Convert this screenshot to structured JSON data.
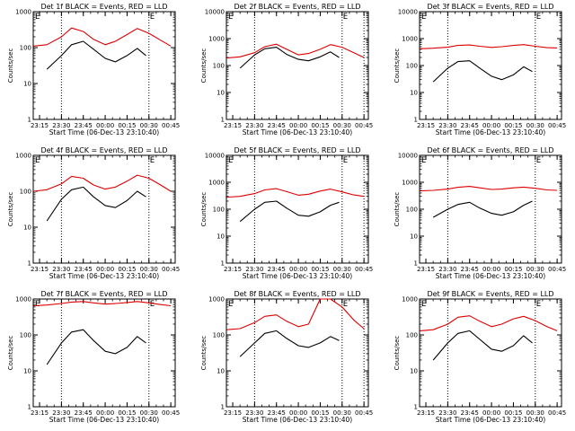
{
  "chart_data": [
    {
      "type": "line",
      "title": "Det 1f BLACK = Events, RED = LLD",
      "xlabel": "Start Time (06-Dec-13 23:10:40)",
      "ylabel": "Counts/sec",
      "ylim": [
        1,
        1000
      ],
      "x_ticks": [
        "23:15",
        "23:30",
        "23:45",
        "00:00",
        "00:15",
        "00:30",
        "00:45"
      ],
      "y_ticks": [
        "1",
        "10",
        "100",
        "1000"
      ],
      "markers": [
        "23:30",
        "00:30"
      ],
      "corner_labels": [
        "E",
        "E"
      ],
      "series": [
        {
          "color": "#000000",
          "x": [
            "23:20",
            "23:30",
            "23:37",
            "23:45",
            "23:52",
            "00:00",
            "00:07",
            "00:15",
            "00:22",
            "00:28"
          ],
          "values": [
            25,
            60,
            120,
            150,
            90,
            50,
            40,
            60,
            95,
            60
          ]
        },
        {
          "color": "#dd0000",
          "x": [
            "23:11",
            "23:20",
            "23:30",
            "23:37",
            "23:45",
            "23:52",
            "00:00",
            "00:07",
            "00:15",
            "00:22",
            "00:30",
            "00:38",
            "00:45"
          ],
          "values": [
            110,
            120,
            200,
            350,
            280,
            170,
            120,
            150,
            230,
            340,
            250,
            160,
            110
          ]
        }
      ]
    },
    {
      "type": "line",
      "title": "Det 2f BLACK = Events, RED = LLD",
      "xlabel": "Start Time (06-Dec-13 23:10:40)",
      "ylabel": "Counts/sec",
      "ylim": [
        1,
        10000
      ],
      "x_ticks": [
        "23:15",
        "23:30",
        "23:45",
        "00:00",
        "00:15",
        "00:30",
        "00:45"
      ],
      "y_ticks": [
        "1",
        "10",
        "100",
        "1000",
        "10000"
      ],
      "markers": [
        "23:30",
        "00:30",
        "00:45"
      ],
      "corner_labels": [
        "E",
        "E"
      ],
      "series": [
        {
          "color": "#000000",
          "x": [
            "23:20",
            "23:30",
            "23:37",
            "23:45",
            "23:52",
            "00:00",
            "00:07",
            "00:15",
            "00:22",
            "00:28"
          ],
          "values": [
            80,
            250,
            420,
            480,
            260,
            170,
            150,
            210,
            320,
            200
          ]
        },
        {
          "color": "#dd0000",
          "x": [
            "23:11",
            "23:20",
            "23:30",
            "23:37",
            "23:45",
            "23:52",
            "00:00",
            "00:07",
            "00:15",
            "00:22",
            "00:30",
            "00:38",
            "00:45"
          ],
          "values": [
            190,
            210,
            300,
            500,
            620,
            400,
            250,
            280,
            400,
            600,
            480,
            300,
            200
          ]
        }
      ]
    },
    {
      "type": "line",
      "title": "Det 3f BLACK = Events, RED = LLD",
      "xlabel": "Start Time (06-Dec-13 23:10:40)",
      "ylabel": "Counts/sec",
      "ylim": [
        1,
        10000
      ],
      "x_ticks": [
        "23:15",
        "23:30",
        "23:45",
        "00:00",
        "00:15",
        "00:30",
        "00:45"
      ],
      "y_ticks": [
        "1",
        "10",
        "100",
        "1000",
        "10000"
      ],
      "markers": [
        "23:30",
        "00:30"
      ],
      "corner_labels": [
        "E",
        "E"
      ],
      "series": [
        {
          "color": "#000000",
          "x": [
            "23:20",
            "23:30",
            "23:37",
            "23:45",
            "23:52",
            "00:00",
            "00:07",
            "00:15",
            "00:22",
            "00:28"
          ],
          "values": [
            25,
            80,
            140,
            150,
            80,
            40,
            30,
            45,
            90,
            60
          ]
        },
        {
          "color": "#dd0000",
          "x": [
            "23:11",
            "23:20",
            "23:30",
            "23:37",
            "23:45",
            "23:52",
            "00:00",
            "00:07",
            "00:15",
            "00:22",
            "00:30",
            "00:38",
            "00:45"
          ],
          "values": [
            420,
            440,
            480,
            560,
            580,
            520,
            470,
            500,
            560,
            600,
            520,
            460,
            450
          ]
        }
      ]
    },
    {
      "type": "line",
      "title": "Det 4f BLACK = Events, RED = LLD",
      "xlabel": "Start Time (06-Dec-13 23:10:40)",
      "ylabel": "Counts/sec",
      "ylim": [
        1,
        1000
      ],
      "x_ticks": [
        "23:15",
        "23:30",
        "23:45",
        "00:00",
        "00:15",
        "00:30",
        "00:45"
      ],
      "y_ticks": [
        "1",
        "10",
        "100",
        "1000"
      ],
      "markers": [
        "23:30",
        "00:30"
      ],
      "corner_labels": [
        "E",
        "E"
      ],
      "series": [
        {
          "color": "#000000",
          "x": [
            "23:20",
            "23:30",
            "23:37",
            "23:45",
            "23:52",
            "00:00",
            "00:07",
            "00:15",
            "00:22",
            "00:28"
          ],
          "values": [
            15,
            60,
            110,
            130,
            70,
            40,
            35,
            55,
            100,
            70
          ]
        },
        {
          "color": "#dd0000",
          "x": [
            "23:11",
            "23:20",
            "23:30",
            "23:37",
            "23:45",
            "23:52",
            "00:00",
            "00:07",
            "00:15",
            "00:22",
            "00:30",
            "00:38",
            "00:45"
          ],
          "values": [
            100,
            110,
            160,
            260,
            230,
            150,
            115,
            130,
            190,
            280,
            230,
            150,
            100
          ]
        }
      ]
    },
    {
      "type": "line",
      "title": "Det 5f BLACK = Events, RED = LLD",
      "xlabel": "Start Time (06-Dec-13 23:10:40)",
      "ylabel": "Counts/sec",
      "ylim": [
        1,
        10000
      ],
      "x_ticks": [
        "23:15",
        "23:30",
        "23:45",
        "00:00",
        "00:15",
        "00:30",
        "00:45"
      ],
      "y_ticks": [
        "1",
        "10",
        "100",
        "1000",
        "10000"
      ],
      "markers": [
        "23:30",
        "00:30",
        "00:45"
      ],
      "corner_labels": [
        "E",
        "E"
      ],
      "series": [
        {
          "color": "#000000",
          "x": [
            "23:20",
            "23:30",
            "23:37",
            "23:45",
            "23:52",
            "00:00",
            "00:07",
            "00:15",
            "00:22",
            "00:28"
          ],
          "values": [
            35,
            100,
            180,
            200,
            110,
            60,
            55,
            80,
            140,
            180
          ]
        },
        {
          "color": "#dd0000",
          "x": [
            "23:11",
            "23:20",
            "23:30",
            "23:37",
            "23:45",
            "23:52",
            "00:00",
            "00:07",
            "00:15",
            "00:22",
            "00:30",
            "00:38",
            "00:45"
          ],
          "values": [
            280,
            300,
            380,
            520,
            580,
            450,
            330,
            360,
            470,
            560,
            440,
            340,
            300
          ]
        }
      ]
    },
    {
      "type": "line",
      "title": "Det 6f BLACK = Events, RED = LLD",
      "xlabel": "Start Time (06-Dec-13 23:10:40)",
      "ylabel": "Counts/sec",
      "ylim": [
        1,
        10000
      ],
      "x_ticks": [
        "23:15",
        "23:30",
        "23:45",
        "00:00",
        "00:15",
        "00:30",
        "00:45"
      ],
      "y_ticks": [
        "1",
        "10",
        "100",
        "1000",
        "10000"
      ],
      "markers": [
        "23:30",
        "00:30"
      ],
      "corner_labels": [
        "E",
        "E"
      ],
      "series": [
        {
          "color": "#000000",
          "x": [
            "23:20",
            "23:30",
            "23:37",
            "23:45",
            "23:52",
            "00:00",
            "00:07",
            "00:15",
            "00:22",
            "00:28"
          ],
          "values": [
            50,
            100,
            150,
            180,
            110,
            70,
            60,
            80,
            140,
            200
          ]
        },
        {
          "color": "#dd0000",
          "x": [
            "23:11",
            "23:20",
            "23:30",
            "23:37",
            "23:45",
            "23:52",
            "00:00",
            "00:07",
            "00:15",
            "00:22",
            "00:30",
            "00:38",
            "00:45"
          ],
          "values": [
            480,
            500,
            560,
            650,
            700,
            620,
            540,
            560,
            620,
            660,
            600,
            520,
            500
          ]
        }
      ]
    },
    {
      "type": "line",
      "title": "Det 7f BLACK = Events, RED = LLD",
      "xlabel": "Start Time (06-Dec-13 23:10:40)",
      "ylabel": "Counts/sec",
      "ylim": [
        1,
        1000
      ],
      "x_ticks": [
        "23:15",
        "23:30",
        "23:45",
        "00:00",
        "00:15",
        "00:30",
        "00:45"
      ],
      "y_ticks": [
        "1",
        "10",
        "100",
        "1000"
      ],
      "markers": [
        "23:30",
        "00:30"
      ],
      "corner_labels": [
        "E",
        "E"
      ],
      "series": [
        {
          "color": "#000000",
          "x": [
            "23:20",
            "23:30",
            "23:37",
            "23:45",
            "23:52",
            "00:00",
            "00:07",
            "00:15",
            "00:22",
            "00:28"
          ],
          "values": [
            15,
            60,
            120,
            140,
            70,
            35,
            30,
            45,
            90,
            60
          ]
        },
        {
          "color": "#dd0000",
          "x": [
            "23:11",
            "23:20",
            "23:30",
            "23:37",
            "23:45",
            "23:52",
            "00:00",
            "00:07",
            "00:15",
            "00:22",
            "00:30",
            "00:38",
            "00:45"
          ],
          "values": [
            650,
            680,
            750,
            820,
            850,
            780,
            720,
            750,
            800,
            850,
            780,
            700,
            650
          ]
        }
      ]
    },
    {
      "type": "line",
      "title": "Det 8f BLACK = Events, RED = LLD",
      "xlabel": "Start Time (06-Dec-13 23:10:40)",
      "ylabel": "Counts/sec",
      "ylim": [
        1,
        1000
      ],
      "x_ticks": [
        "23:15",
        "23:30",
        "23:45",
        "00:00",
        "00:15",
        "00:30",
        "00:45"
      ],
      "y_ticks": [
        "1",
        "10",
        "100",
        "1000"
      ],
      "markers": [
        "23:30",
        "00:30",
        "00:45"
      ],
      "corner_labels": [
        "E",
        "E"
      ],
      "series": [
        {
          "color": "#000000",
          "x": [
            "23:20",
            "23:30",
            "23:37",
            "23:45",
            "23:52",
            "00:00",
            "00:07",
            "00:15",
            "00:22",
            "00:28"
          ],
          "values": [
            25,
            60,
            110,
            130,
            80,
            50,
            45,
            60,
            90,
            70
          ]
        },
        {
          "color": "#dd0000",
          "x": [
            "23:11",
            "23:20",
            "23:30",
            "23:37",
            "23:45",
            "23:52",
            "00:00",
            "00:07",
            "00:15",
            "00:22",
            "00:30",
            "00:38",
            "00:45"
          ],
          "values": [
            140,
            150,
            220,
            330,
            360,
            240,
            170,
            200,
            1000,
            1000,
            600,
            260,
            150
          ]
        }
      ]
    },
    {
      "type": "line",
      "title": "Det 9f BLACK = Events, RED = LLD",
      "xlabel": "Start Time (06-Dec-13 23:10:40)",
      "ylabel": "Counts/sec",
      "ylim": [
        1,
        1000
      ],
      "x_ticks": [
        "23:15",
        "23:30",
        "23:45",
        "00:00",
        "00:15",
        "00:30",
        "00:45"
      ],
      "y_ticks": [
        "1",
        "10",
        "100",
        "1000"
      ],
      "markers": [
        "23:30",
        "00:30"
      ],
      "corner_labels": [
        "E",
        "E"
      ],
      "series": [
        {
          "color": "#000000",
          "x": [
            "23:20",
            "23:30",
            "23:37",
            "23:45",
            "23:52",
            "00:00",
            "00:07",
            "00:15",
            "00:22",
            "00:28"
          ],
          "values": [
            20,
            60,
            110,
            130,
            75,
            40,
            35,
            50,
            95,
            60
          ]
        },
        {
          "color": "#dd0000",
          "x": [
            "23:11",
            "23:20",
            "23:30",
            "23:37",
            "23:45",
            "23:52",
            "00:00",
            "00:07",
            "00:15",
            "00:22",
            "00:30",
            "00:38",
            "00:45"
          ],
          "values": [
            130,
            140,
            200,
            310,
            340,
            240,
            170,
            200,
            280,
            330,
            250,
            170,
            130
          ]
        }
      ]
    }
  ]
}
